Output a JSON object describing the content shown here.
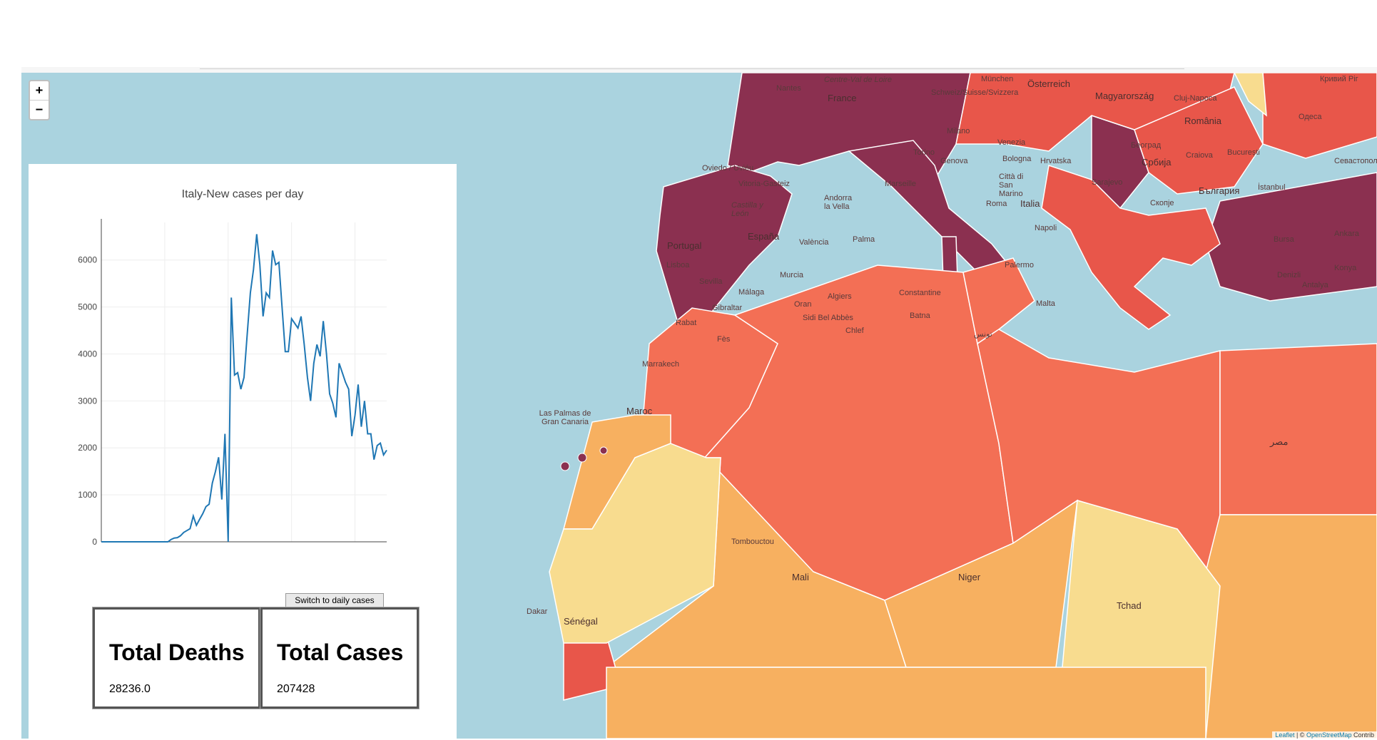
{
  "chart_data": {
    "type": "line",
    "title": "Italy-New cases per day",
    "xlabel": "",
    "ylabel": "",
    "xlim": [
      0,
      90
    ],
    "ylim": [
      0,
      6800
    ],
    "xticks": [
      0,
      20,
      40,
      60,
      80
    ],
    "yticks": [
      0,
      1000,
      2000,
      3000,
      4000,
      5000,
      6000
    ],
    "color": "#1f77b4",
    "series": [
      {
        "x": [
          0,
          21,
          22,
          23,
          24,
          25,
          26,
          27,
          28,
          29,
          30,
          31,
          32,
          33,
          34,
          35,
          36,
          37,
          38,
          39,
          40,
          41,
          42,
          43,
          44,
          45,
          46,
          47,
          48,
          49,
          50,
          51,
          52,
          53,
          54,
          55,
          56,
          57,
          58,
          59,
          60,
          61,
          62,
          63,
          64,
          65,
          66,
          67,
          68,
          69,
          70,
          71,
          72,
          73,
          74,
          75,
          76,
          77,
          78,
          79,
          80,
          81,
          82,
          83,
          84,
          85,
          86,
          87,
          88,
          89,
          90
        ],
        "y": [
          0,
          0,
          50,
          80,
          90,
          130,
          200,
          240,
          280,
          550,
          350,
          480,
          600,
          750,
          800,
          1250,
          1500,
          1800,
          900,
          2300,
          0,
          5200,
          3550,
          3600,
          3250,
          3500,
          4400,
          5300,
          5800,
          6550,
          5900,
          4800,
          5300,
          5200,
          6200,
          5900,
          5950,
          5000,
          4050,
          4050,
          4750,
          4650,
          4550,
          4800,
          4200,
          3500,
          3000,
          3800,
          4200,
          3950,
          4700,
          4000,
          3150,
          2950,
          2650,
          3800,
          3600,
          3400,
          3250,
          2250,
          2700,
          3350,
          2450,
          3000,
          2300,
          2300,
          1750,
          2050,
          2100,
          1850,
          1950
        ]
      }
    ]
  },
  "panel": {
    "switch_label": "Switch to daily cases",
    "deaths_title": "Total Deaths",
    "deaths_value": "28236.0",
    "cases_title": "Total Cases",
    "cases_value": "207428"
  },
  "map": {
    "zoom_in": "+",
    "zoom_out": "−",
    "attribution_leaflet": "Leaflet",
    "attribution_sep": " | © ",
    "attribution_osm": "OpenStreetMap",
    "attribution_rest": " Contrib",
    "colors": {
      "water": "#aad3df",
      "dark": "#8b3050",
      "red": "#e8564a",
      "orange_red": "#f36f55",
      "orange": "#f7b060",
      "light": "#f8dc8f"
    },
    "labels": {
      "nantes": "Nantes",
      "centre": "Centre-Val de Loire",
      "france": "France",
      "munchen": "München",
      "osterreich": "Österreich",
      "magyar": "Magyarország",
      "kryvyi": "Кривий Ріг",
      "schweiz": "Schweiz/Suisse/Svizzera",
      "milano": "Milano",
      "cluj": "Cluj-Napoca",
      "romania": "România",
      "odesa": "Одеса",
      "torino": "Torino",
      "genova": "Genova",
      "venezia": "Venezia",
      "bologna": "Bologna",
      "hrvatska": "Hrvatska",
      "beograd": "Београд",
      "srbija": "Србија",
      "craiova": "Craiova",
      "bucuresti": "București",
      "sevastopol": "Севастополь",
      "oviedo": "Oviedo / Uviéu",
      "vitoria": "Vitoria-Gasteiz",
      "marseille": "Marseille",
      "sarajevo": "Sarajevo",
      "bulgaria": "България",
      "castilla": "Castilla y León",
      "andorra": "Andorra la Vella",
      "citta": "Città di San Marino",
      "italia": "Italia",
      "roma": "Roma",
      "skopje": "Скопје",
      "istanbul": "İstanbul",
      "espana": "España",
      "portugal": "Portugal",
      "valencia": "València",
      "palma": "Palma",
      "napoli": "Napoli",
      "bursa": "Bursa",
      "ankara": "Ankara",
      "lisboa": "Lisboa",
      "murcia": "Murcia",
      "sevilla": "Sevilla",
      "malaga": "Málaga",
      "palermo": "Palermo",
      "konya": "Konya",
      "denizli": "Denizli",
      "antalya": "Antalya",
      "algiers": "Algiers",
      "constantine": "Constantine",
      "oran": "Oran",
      "gibraltar": "Gibraltar",
      "malta": "Malta",
      "sidi": "Sidi Bel Abbès",
      "batna": "Batna",
      "rabat": "Rabat",
      "chlef": "Chlef",
      "fes": "Fès",
      "tunis": "تونس",
      "marrakech": "Marrakech",
      "lasp": "Las Palmas de Gran Canaria",
      "maroc": "Maroc",
      "tombouctou": "Tombouctou",
      "mali": "Mali",
      "niger": "Niger",
      "tchad": "Tchad",
      "senegal": "Sénégal",
      "dakar": "Dakar",
      "egypt": "مصر"
    }
  }
}
